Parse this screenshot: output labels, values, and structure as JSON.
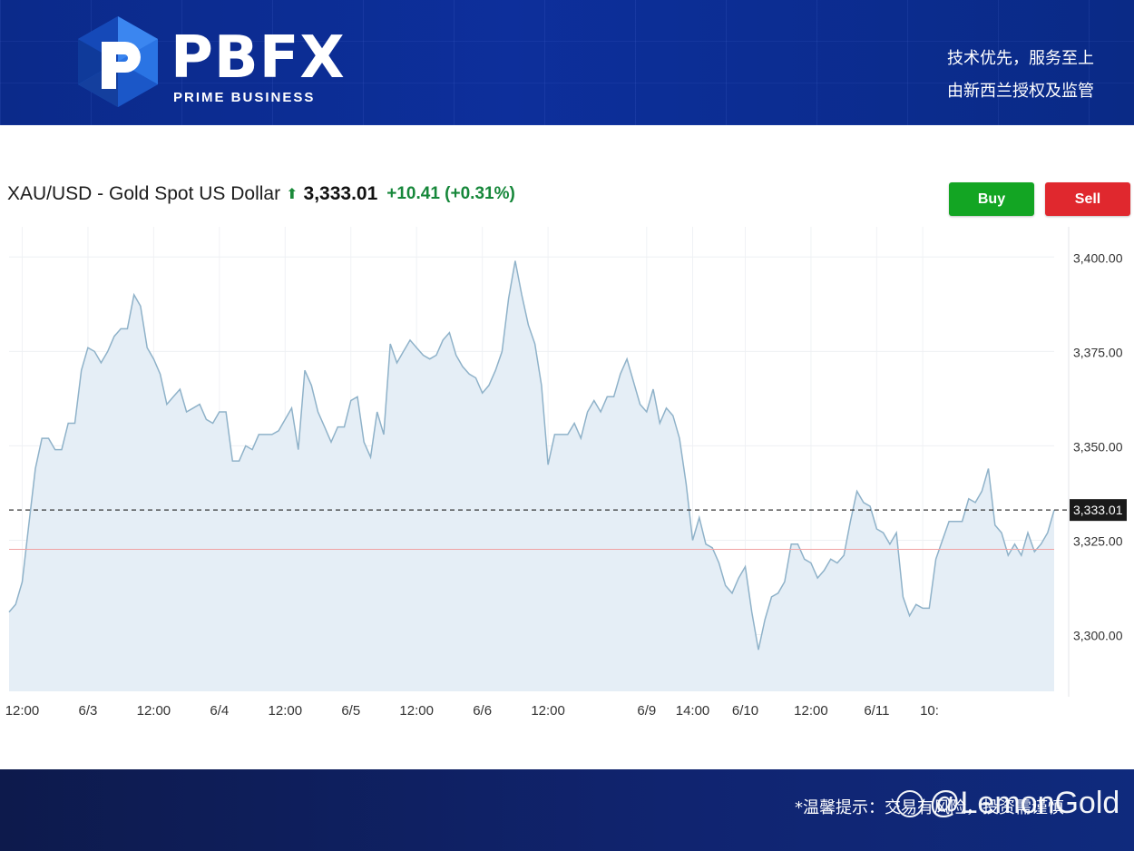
{
  "header": {
    "brand_name": "PBFX",
    "brand_sub": "PRIME BUSINESS",
    "slogan_line1": "技术优先，服务至上",
    "slogan_line2": "由新西兰授权及监管",
    "bg_color": "#0d2f9b"
  },
  "quote": {
    "symbol": "XAU/USD - Gold Spot US Dollar",
    "direction_icon": "up-arrow-icon",
    "price": "3,333.01",
    "change": "+10.41 (+0.31%)",
    "change_color": "#16873a"
  },
  "actions": {
    "buy_label": "Buy",
    "sell_label": "Sell",
    "buy_color": "#13a523",
    "sell_color": "#e0282e"
  },
  "footer": {
    "note": "*温馨提示：交易有风险，投资需谨慎",
    "watermark": "@LemonGold"
  },
  "chart_data": {
    "type": "area",
    "title": "",
    "xlabel": "",
    "ylabel": "",
    "ylim": [
      3285,
      3408
    ],
    "yticks": [
      3300,
      3325,
      3350,
      3375,
      3400
    ],
    "ytick_labels": [
      "3,300.00",
      "3,325.00",
      "3,350.00",
      "3,375.00",
      "3,400.00"
    ],
    "xtick_labels": [
      "12:00",
      "6/3",
      "12:00",
      "6/4",
      "12:00",
      "6/5",
      "12:00",
      "6/6",
      "12:00",
      "6/9",
      "14:00",
      "6/10",
      "12:00",
      "6/11",
      "10:"
    ],
    "xtick_index": [
      2,
      12,
      22,
      32,
      42,
      52,
      62,
      72,
      82,
      97,
      104,
      112,
      122,
      132,
      139
    ],
    "last_price": 3333.01,
    "last_price_label": "3,333.01",
    "reference_line": 3322.6,
    "line_color": "#8fb2c9",
    "fill_color": "#e5eef6",
    "grid": true,
    "series": [
      {
        "values": [
          3306,
          3308,
          3314,
          3329,
          3344,
          3352,
          3352,
          3349,
          3349,
          3356,
          3356,
          3370,
          3376,
          3375,
          3372,
          3375,
          3379,
          3381,
          3381,
          3390,
          3387,
          3376,
          3373,
          3369,
          3361,
          3363,
          3365,
          3359,
          3360,
          3361,
          3357,
          3356,
          3359,
          3359,
          3346,
          3346,
          3350,
          3349,
          3353,
          3353,
          3353,
          3354,
          3357,
          3360,
          3349,
          3370,
          3366,
          3359,
          3355,
          3351,
          3355,
          3355,
          3362,
          3363,
          3351,
          3347,
          3359,
          3353,
          3377,
          3372,
          3375,
          3378,
          3376,
          3374,
          3373,
          3374,
          3378,
          3380,
          3374,
          3371,
          3369,
          3368,
          3364,
          3366,
          3370,
          3375,
          3389,
          3399,
          3390,
          3382,
          3377,
          3366,
          3345,
          3353,
          3353,
          3353,
          3356,
          3352,
          3359,
          3362,
          3359,
          3363,
          3363,
          3369,
          3373,
          3367,
          3361,
          3359,
          3365,
          3356,
          3360,
          3358,
          3352,
          3340,
          3325,
          3331,
          3324,
          3323,
          3319,
          3313,
          3311,
          3315,
          3318,
          3306,
          3296,
          3304,
          3310,
          3311,
          3314,
          3324,
          3324,
          3320,
          3319,
          3315,
          3317,
          3320,
          3319,
          3321,
          3330,
          3338,
          3335,
          3334,
          3328,
          3327,
          3324,
          3327,
          3310,
          3305,
          3308,
          3307,
          3307,
          3320,
          3325,
          3330,
          3330,
          3330,
          3336,
          3335,
          3338,
          3344,
          3329,
          3327,
          3321,
          3324,
          3321,
          3327,
          3322,
          3324,
          3327,
          3333
        ]
      }
    ]
  }
}
